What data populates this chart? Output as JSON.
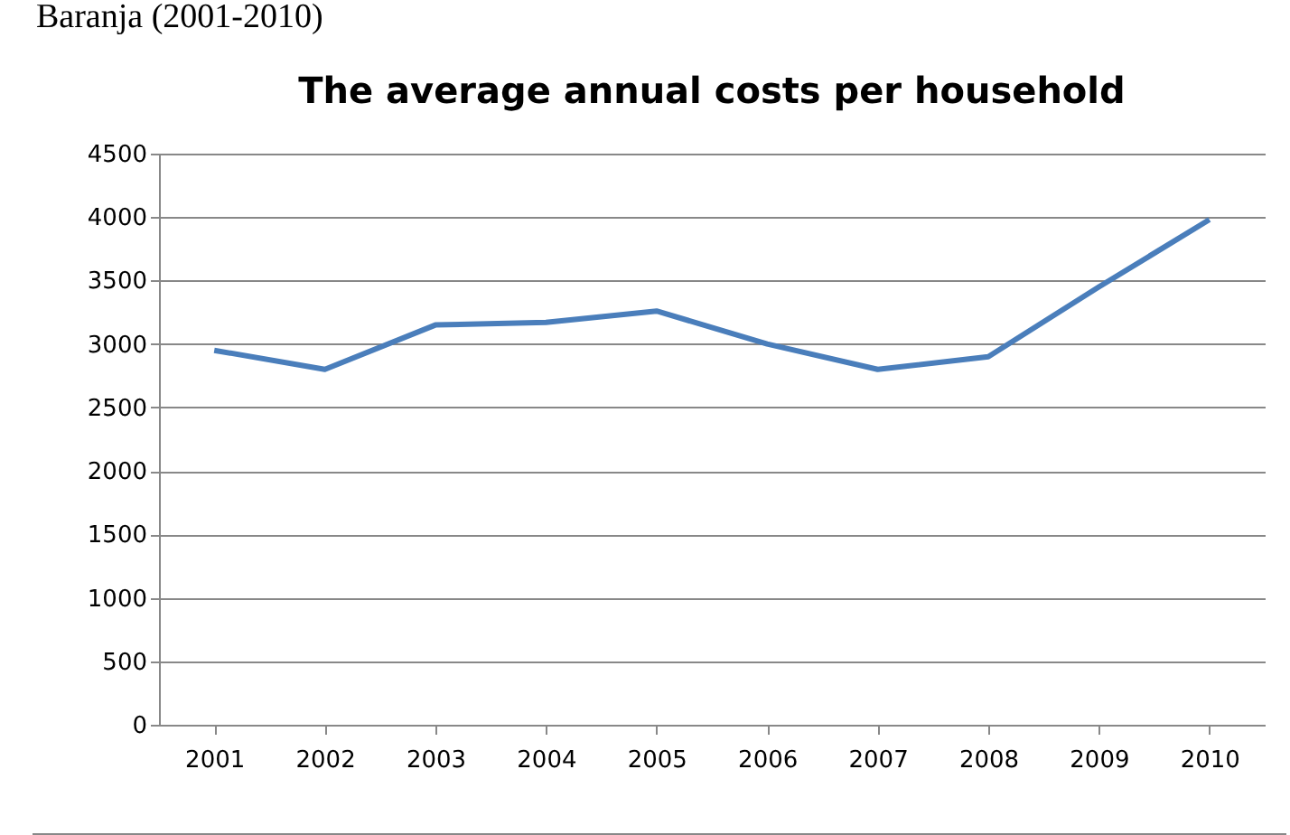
{
  "chart_data": {
    "type": "line",
    "title": "The average annual costs per household",
    "annotations": [
      "Baranja (2001-2010)"
    ],
    "categories": [
      "2001",
      "2002",
      "2003",
      "2004",
      "2005",
      "2006",
      "2007",
      "2008",
      "2009",
      "2010"
    ],
    "series": [
      {
        "color": "#4a7ebb",
        "values": [
          2950,
          2800,
          3150,
          3170,
          3260,
          3000,
          2800,
          2900,
          3450,
          3980
        ]
      }
    ],
    "ylim": [
      0,
      4500
    ],
    "yticks": [
      0,
      500,
      1000,
      1500,
      2000,
      2500,
      3000,
      3500,
      4000,
      4500
    ],
    "grid": "y",
    "legend": false,
    "marker": "none",
    "line_style": "solid"
  }
}
